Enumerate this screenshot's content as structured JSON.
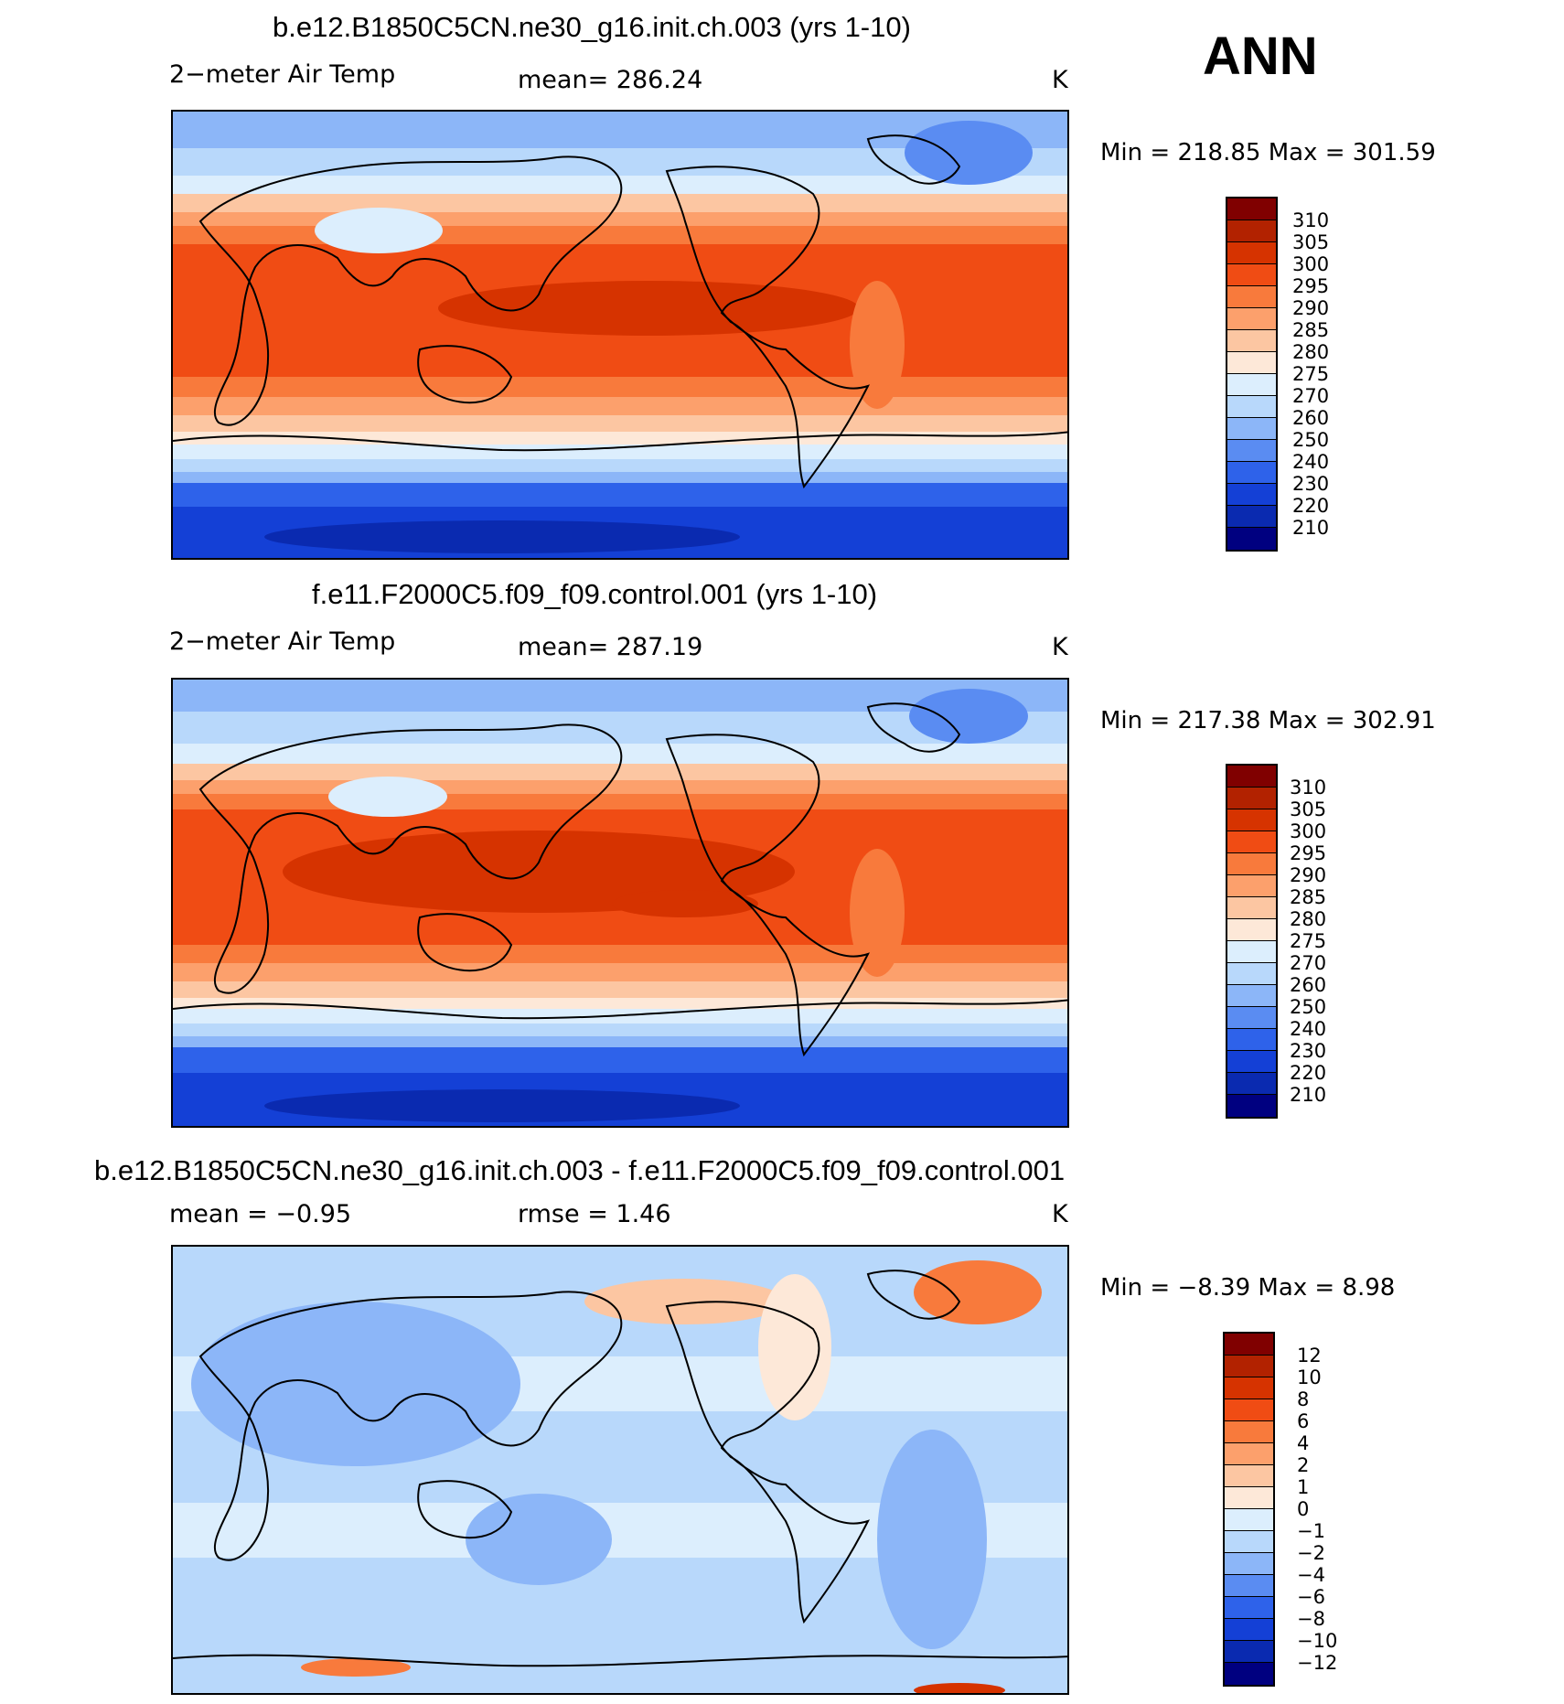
{
  "season": "ANN",
  "panels": [
    {
      "title": "b.e12.B1850C5CN.ne30_g16.init.ch.003 (yrs 1-10)",
      "variable": "2−meter Air Temp",
      "stat": "mean=  286.24",
      "units": "K",
      "minmax": "Min  =  218.85  Max  =  301.59",
      "colorbar": {
        "labels": [
          "310",
          "305",
          "300",
          "295",
          "290",
          "285",
          "280",
          "275",
          "270",
          "260",
          "250",
          "240",
          "230",
          "220",
          "210"
        ],
        "colors": [
          "#800000",
          "#b22200",
          "#d63300",
          "#f04c14",
          "#f87a3c",
          "#fca06c",
          "#fcc6a2",
          "#fde8d8",
          "#dceefd",
          "#b8d8fb",
          "#8cb6f8",
          "#5a8cf2",
          "#2e62ea",
          "#1440d6",
          "#0a2ab0",
          "#000080"
        ]
      }
    },
    {
      "title": "f.e11.F2000C5.f09_f09.control.001 (yrs 1-10)",
      "variable": "2−meter Air Temp",
      "stat": "mean=  287.19",
      "units": "K",
      "minmax": "Min  =  217.38  Max  =  302.91",
      "colorbar": {
        "labels": [
          "310",
          "305",
          "300",
          "295",
          "290",
          "285",
          "280",
          "275",
          "270",
          "260",
          "250",
          "240",
          "230",
          "220",
          "210"
        ],
        "colors": [
          "#800000",
          "#b22200",
          "#d63300",
          "#f04c14",
          "#f87a3c",
          "#fca06c",
          "#fcc6a2",
          "#fde8d8",
          "#dceefd",
          "#b8d8fb",
          "#8cb6f8",
          "#5a8cf2",
          "#2e62ea",
          "#1440d6",
          "#0a2ab0",
          "#000080"
        ]
      }
    },
    {
      "title": "b.e12.B1850C5CN.ne30_g16.init.ch.003 - f.e11.F2000C5.f09_f09.control.001",
      "stat_mean": "mean  =    −0.95",
      "stat_rmse": "rmse  =      1.46",
      "units": "K",
      "minmax": "Min  =     −8.39  Max  =      8.98",
      "colorbar": {
        "labels": [
          "12",
          "10",
          "8",
          "6",
          "4",
          "2",
          "1",
          "0",
          "−1",
          "−2",
          "−4",
          "−6",
          "−8",
          "−10",
          "−12"
        ],
        "colors": [
          "#800000",
          "#b22200",
          "#d63300",
          "#f04c14",
          "#f87a3c",
          "#fca06c",
          "#fcc6a2",
          "#fde8d8",
          "#dceefd",
          "#b8d8fb",
          "#8cb6f8",
          "#5a8cf2",
          "#2e62ea",
          "#1440d6",
          "#0a2ab0",
          "#000080"
        ]
      }
    }
  ]
}
